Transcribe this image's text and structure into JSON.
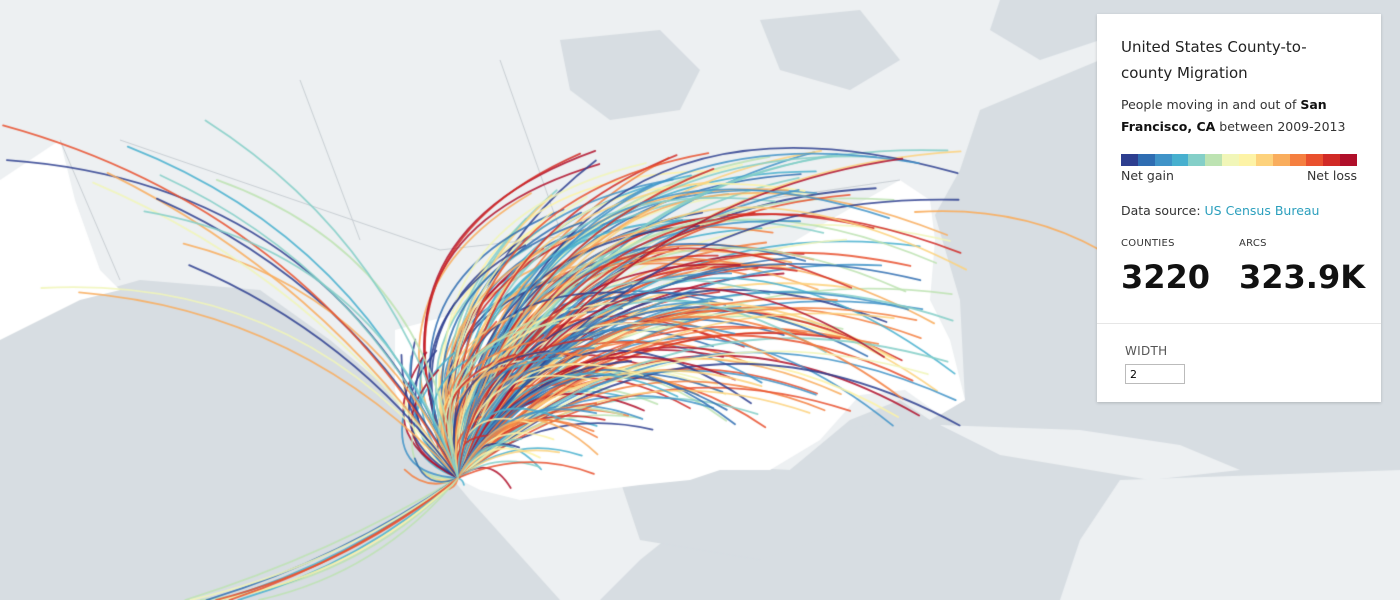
{
  "panel": {
    "title": "United States County-to-county Migration",
    "desc_prefix": "People moving in and out of ",
    "desc_place": "San Francisco, CA",
    "desc_suffix": " between 2009-2013",
    "scale_colors": [
      "#2d3e8f",
      "#2f6db2",
      "#3f93c8",
      "#47b0cf",
      "#84cfc8",
      "#bde3b2",
      "#f1f6b8",
      "#fdf3a6",
      "#fdd27c",
      "#f9ad5d",
      "#f57f40",
      "#e9502e",
      "#d12a26",
      "#b00f2a"
    ],
    "scale_low_label": "Net gain",
    "scale_high_label": "Net loss",
    "source_prefix": "Data source: ",
    "source_link": "US Census Bureau",
    "counties_label": "COUNTIES",
    "counties_value": "3220",
    "arcs_label": "ARCS",
    "arcs_value": "323.9K",
    "width_label": "WIDTH",
    "width_value": "2"
  },
  "map": {
    "ocean_color": "#d7dde2",
    "land_color": "#edf0f2",
    "us_color": "#ffffff",
    "border_color": "#c9cfd4"
  }
}
